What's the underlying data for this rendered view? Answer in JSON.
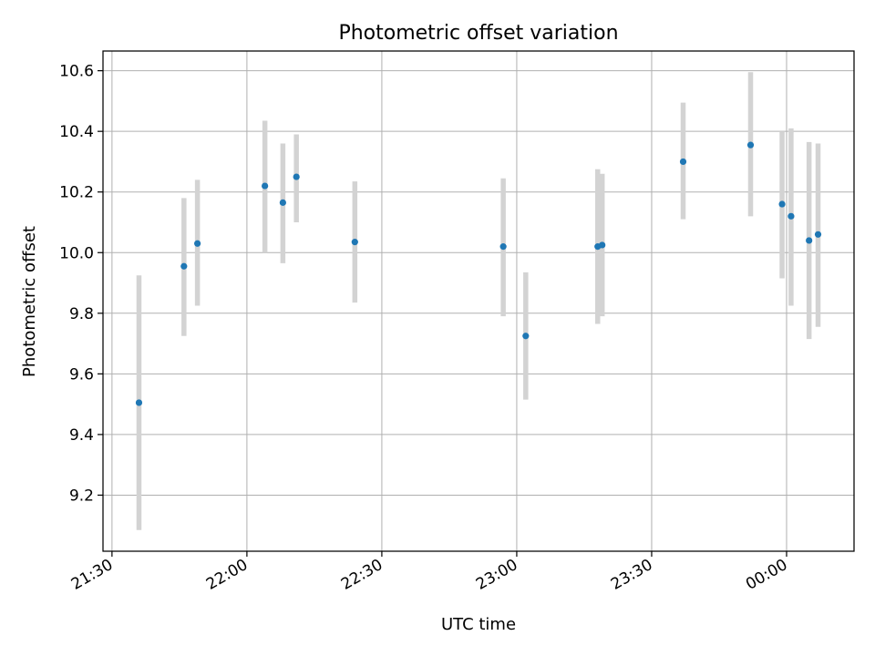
{
  "chart_data": {
    "type": "scatter",
    "title": "Photometric offset variation",
    "xlabel": "UTC time",
    "ylabel": "Photometric offset",
    "x_ticks": [
      "21:30",
      "22:00",
      "22:30",
      "23:00",
      "23:30",
      "00:00"
    ],
    "y_ticks": [
      "9.2",
      "9.4",
      "9.6",
      "9.8",
      "10.0",
      "10.2",
      "10.4",
      "10.6"
    ],
    "xlim": [
      "21:28",
      "00:15"
    ],
    "ylim": [
      9.015,
      10.665
    ],
    "grid": true,
    "point_color": "#1f77b4",
    "errorbar_color": "#d3d3d3",
    "series": [
      {
        "points": [
          {
            "x": "21:36",
            "y": 9.505,
            "low": 9.085,
            "high": 9.925
          },
          {
            "x": "21:46",
            "y": 9.955,
            "low": 9.725,
            "high": 10.18
          },
          {
            "x": "21:49",
            "y": 10.03,
            "low": 9.825,
            "high": 10.24
          },
          {
            "x": "22:04",
            "y": 10.22,
            "low": 10.0,
            "high": 10.435
          },
          {
            "x": "22:08",
            "y": 10.165,
            "low": 9.965,
            "high": 10.36
          },
          {
            "x": "22:11",
            "y": 10.25,
            "low": 10.1,
            "high": 10.39
          },
          {
            "x": "22:24",
            "y": 10.035,
            "low": 9.835,
            "high": 10.235
          },
          {
            "x": "22:57",
            "y": 10.02,
            "low": 9.79,
            "high": 10.245
          },
          {
            "x": "23:02",
            "y": 9.725,
            "low": 9.515,
            "high": 9.935
          },
          {
            "x": "23:18",
            "y": 10.02,
            "low": 9.765,
            "high": 10.275
          },
          {
            "x": "23:19",
            "y": 10.025,
            "low": 9.79,
            "high": 10.26
          },
          {
            "x": "23:37",
            "y": 10.3,
            "low": 10.11,
            "high": 10.495
          },
          {
            "x": "23:52",
            "y": 10.355,
            "low": 10.12,
            "high": 10.595
          },
          {
            "x": "23:59",
            "y": 10.16,
            "low": 9.915,
            "high": 10.4
          },
          {
            "x": "00:01",
            "y": 10.12,
            "low": 9.825,
            "high": 10.41
          },
          {
            "x": "00:05",
            "y": 10.04,
            "low": 9.715,
            "high": 10.365
          },
          {
            "x": "00:07",
            "y": 10.06,
            "low": 9.755,
            "high": 10.36
          }
        ]
      }
    ]
  }
}
